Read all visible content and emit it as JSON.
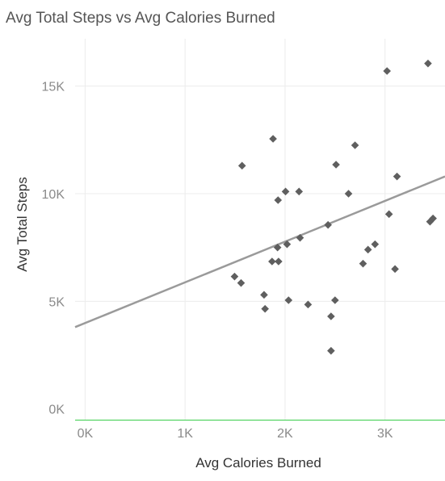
{
  "chart_data": {
    "type": "scatter",
    "title": "Avg Total Steps vs Avg Calories Burned",
    "xlabel": "Avg Calories Burned",
    "ylabel": "Avg Total Steps",
    "xlim": [
      -100,
      3600
    ],
    "ylim": [
      -500,
      17200
    ],
    "x_ticks": [
      {
        "value": 0,
        "label": "0K"
      },
      {
        "value": 1000,
        "label": "1K"
      },
      {
        "value": 2000,
        "label": "2K"
      },
      {
        "value": 3000,
        "label": "3K"
      }
    ],
    "y_ticks": [
      {
        "value": 0,
        "label": "0K"
      },
      {
        "value": 5000,
        "label": "5K"
      },
      {
        "value": 10000,
        "label": "10K"
      },
      {
        "value": 15000,
        "label": "15K"
      }
    ],
    "grid": true,
    "marker": "diamond",
    "colors": {
      "points": "#5f5f5f",
      "trend": "#9a9a9a",
      "grid": "#ececec",
      "baseline": "#2ecc40"
    },
    "trend_line": {
      "points": [
        [
          -100,
          3800
        ],
        [
          3600,
          10800
        ]
      ]
    },
    "points": [
      [
        1495,
        6150
      ],
      [
        1560,
        5850
      ],
      [
        1570,
        11300
      ],
      [
        1790,
        5300
      ],
      [
        1800,
        4650
      ],
      [
        1870,
        6850
      ],
      [
        1880,
        12550
      ],
      [
        1925,
        7500
      ],
      [
        1930,
        9700
      ],
      [
        1935,
        6850
      ],
      [
        2005,
        10100
      ],
      [
        2020,
        7650
      ],
      [
        2035,
        5050
      ],
      [
        2140,
        10100
      ],
      [
        2150,
        7950
      ],
      [
        2230,
        4850
      ],
      [
        2430,
        8550
      ],
      [
        2460,
        4300
      ],
      [
        2460,
        2700
      ],
      [
        2500,
        5050
      ],
      [
        2510,
        11350
      ],
      [
        2635,
        10000
      ],
      [
        2700,
        12250
      ],
      [
        2780,
        6750
      ],
      [
        2830,
        7400
      ],
      [
        2900,
        7650
      ],
      [
        3020,
        15700
      ],
      [
        3040,
        9050
      ],
      [
        3100,
        6500
      ],
      [
        3120,
        10800
      ],
      [
        3430,
        16050
      ],
      [
        3450,
        8700
      ],
      [
        3480,
        8850
      ]
    ]
  }
}
